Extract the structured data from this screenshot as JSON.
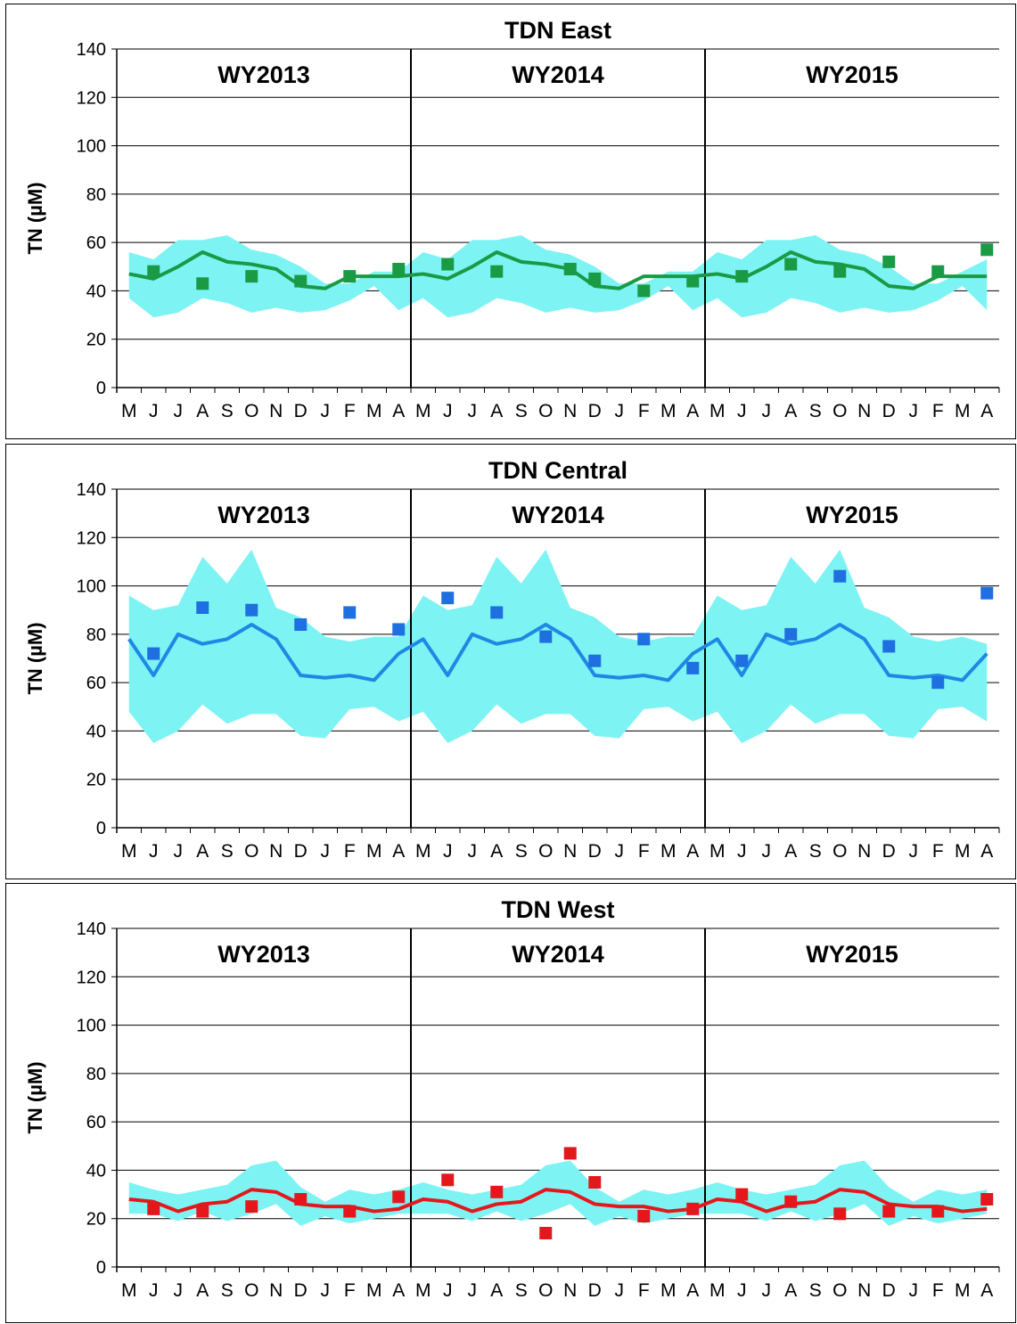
{
  "chart_data": [
    {
      "type": "line",
      "title": "TDN  East",
      "ylabel": "TN (µM)",
      "ylim": [
        0,
        140
      ],
      "yticks": [
        0,
        20,
        40,
        60,
        80,
        100,
        120,
        140
      ],
      "grid": true,
      "x": [
        "M",
        "J",
        "J",
        "A",
        "S",
        "O",
        "N",
        "D",
        "J",
        "F",
        "M",
        "A",
        "M",
        "J",
        "J",
        "A",
        "S",
        "O",
        "N",
        "D",
        "J",
        "F",
        "M",
        "A",
        "M",
        "J",
        "J",
        "A",
        "S",
        "O",
        "N",
        "D",
        "J",
        "F",
        "M",
        "A"
      ],
      "water_years": [
        "WY2013",
        "WY2014",
        "WY2015"
      ],
      "colors": {
        "line": "#1a9a45",
        "points": "#1a9a45",
        "band": "#7ef3f3"
      },
      "series": [
        {
          "kind": "band",
          "upper": [
            56,
            53,
            61,
            61,
            63,
            57,
            55,
            50,
            43,
            43,
            48,
            48,
            56,
            53,
            61,
            61,
            63,
            57,
            55,
            50,
            43,
            43,
            48,
            48,
            56,
            53,
            61,
            61,
            63,
            57,
            55,
            50,
            43,
            43,
            48,
            53
          ],
          "lower": [
            37,
            29,
            31,
            37,
            35,
            31,
            33,
            31,
            32,
            36,
            42,
            32,
            37,
            29,
            31,
            37,
            35,
            31,
            33,
            31,
            32,
            36,
            42,
            32,
            37,
            29,
            31,
            37,
            35,
            31,
            33,
            31,
            32,
            36,
            42,
            32
          ]
        },
        {
          "kind": "line",
          "values": [
            47,
            45,
            50,
            56,
            52,
            51,
            49,
            42,
            41,
            46,
            46,
            46,
            47,
            45,
            50,
            56,
            52,
            51,
            49,
            42,
            41,
            46,
            46,
            46,
            47,
            45,
            50,
            56,
            52,
            51,
            49,
            42,
            41,
            46,
            46,
            46
          ]
        },
        {
          "kind": "points",
          "values": [
            null,
            48,
            null,
            43,
            null,
            46,
            null,
            44,
            null,
            46,
            null,
            49,
            null,
            51,
            null,
            48,
            null,
            null,
            49,
            45,
            null,
            40,
            null,
            44,
            null,
            46,
            null,
            51,
            null,
            48,
            null,
            52,
            null,
            48,
            null,
            57
          ]
        }
      ]
    },
    {
      "type": "line",
      "title": "TDN  Central",
      "ylabel": "TN (µM)",
      "ylim": [
        0,
        140
      ],
      "yticks": [
        0,
        20,
        40,
        60,
        80,
        100,
        120,
        140
      ],
      "grid": true,
      "x": [
        "M",
        "J",
        "J",
        "A",
        "S",
        "O",
        "N",
        "D",
        "J",
        "F",
        "M",
        "A",
        "M",
        "J",
        "J",
        "A",
        "S",
        "O",
        "N",
        "D",
        "J",
        "F",
        "M",
        "A",
        "M",
        "J",
        "J",
        "A",
        "S",
        "O",
        "N",
        "D",
        "J",
        "F",
        "M",
        "A"
      ],
      "water_years": [
        "WY2013",
        "WY2014",
        "WY2015"
      ],
      "colors": {
        "line": "#1e88e5",
        "points": "#1e6fe0",
        "band": "#7ef3f3"
      },
      "series": [
        {
          "kind": "band",
          "upper": [
            96,
            90,
            92,
            112,
            101,
            115,
            91,
            87,
            79,
            77,
            79,
            79,
            96,
            90,
            92,
            112,
            101,
            115,
            91,
            87,
            79,
            77,
            79,
            79,
            96,
            90,
            92,
            112,
            101,
            115,
            91,
            87,
            79,
            77,
            79,
            76
          ],
          "lower": [
            48,
            35,
            40,
            51,
            43,
            47,
            47,
            38,
            37,
            49,
            50,
            44,
            48,
            35,
            40,
            51,
            43,
            47,
            47,
            38,
            37,
            49,
            50,
            44,
            48,
            35,
            40,
            51,
            43,
            47,
            47,
            38,
            37,
            49,
            50,
            44
          ]
        },
        {
          "kind": "line",
          "values": [
            78,
            63,
            80,
            76,
            78,
            84,
            78,
            63,
            62,
            63,
            61,
            72,
            78,
            63,
            80,
            76,
            78,
            84,
            78,
            63,
            62,
            63,
            61,
            72,
            78,
            63,
            80,
            76,
            78,
            84,
            78,
            63,
            62,
            63,
            61,
            72
          ]
        },
        {
          "kind": "points",
          "values": [
            null,
            72,
            null,
            91,
            null,
            90,
            null,
            84,
            null,
            89,
            null,
            82,
            null,
            95,
            null,
            89,
            null,
            79,
            null,
            69,
            null,
            78,
            null,
            66,
            null,
            69,
            null,
            80,
            null,
            104,
            null,
            75,
            null,
            60,
            null,
            97
          ]
        }
      ]
    },
    {
      "type": "line",
      "title": "TDN  West",
      "ylabel": "TN (µM)",
      "ylim": [
        0,
        140
      ],
      "yticks": [
        0,
        20,
        40,
        60,
        80,
        100,
        120,
        140
      ],
      "grid": true,
      "x": [
        "M",
        "J",
        "J",
        "A",
        "S",
        "O",
        "N",
        "D",
        "J",
        "F",
        "M",
        "A",
        "M",
        "J",
        "J",
        "A",
        "S",
        "O",
        "N",
        "D",
        "J",
        "F",
        "M",
        "A",
        "M",
        "J",
        "J",
        "A",
        "S",
        "O",
        "N",
        "D",
        "J",
        "F",
        "M",
        "A"
      ],
      "water_years": [
        "WY2013",
        "WY2014",
        "WY2015"
      ],
      "colors": {
        "line": "#e4181c",
        "points": "#e4181c",
        "band": "#7ef3f3"
      },
      "series": [
        {
          "kind": "band",
          "upper": [
            35,
            32,
            30,
            32,
            34,
            42,
            44,
            33,
            27,
            32,
            30,
            32,
            35,
            32,
            30,
            32,
            34,
            42,
            44,
            33,
            27,
            32,
            30,
            32,
            35,
            32,
            30,
            32,
            34,
            42,
            44,
            33,
            27,
            32,
            30,
            32
          ],
          "lower": [
            22,
            22,
            19,
            23,
            19,
            22,
            26,
            17,
            21,
            18,
            20,
            22,
            22,
            22,
            19,
            23,
            19,
            22,
            26,
            17,
            21,
            18,
            20,
            22,
            22,
            22,
            19,
            23,
            19,
            22,
            26,
            17,
            21,
            18,
            20,
            22
          ]
        },
        {
          "kind": "line",
          "values": [
            28,
            27,
            23,
            26,
            27,
            32,
            31,
            26,
            25,
            25,
            23,
            24,
            28,
            27,
            23,
            26,
            27,
            32,
            31,
            26,
            25,
            25,
            23,
            24,
            28,
            27,
            23,
            26,
            27,
            32,
            31,
            26,
            25,
            25,
            23,
            24
          ]
        },
        {
          "kind": "points",
          "values": [
            null,
            24,
            null,
            23,
            null,
            25,
            null,
            28,
            null,
            23,
            null,
            29,
            null,
            36,
            null,
            31,
            null,
            14,
            47,
            35,
            null,
            21,
            null,
            24,
            null,
            30,
            null,
            27,
            null,
            22,
            null,
            23,
            null,
            23,
            null,
            28
          ]
        }
      ]
    }
  ]
}
